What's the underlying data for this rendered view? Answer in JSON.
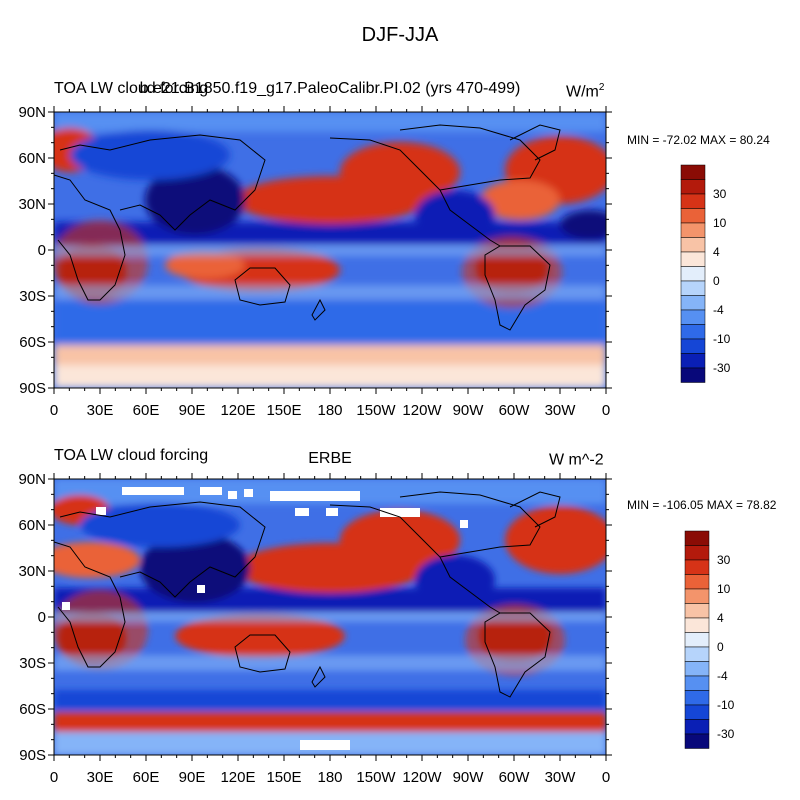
{
  "figure_title": "DJF-JJA",
  "panels": [
    {
      "left_title": "TOA LW cloud forcing",
      "center_title": "b.e21.B1850.f19_g17.PaleoCalibr.PI.02 (yrs 470-499)",
      "units": "W/m",
      "units_sup": "2",
      "min_max": "MIN = -72.02 MAX =  80.24"
    },
    {
      "left_title": "TOA LW cloud forcing",
      "center_title": "ERBE",
      "units": "W m^-2",
      "units_sup": "",
      "min_max": "MIN = -106.05 MAX =  78.82"
    }
  ],
  "lat_labels": [
    "90N",
    "60N",
    "30N",
    "0",
    "30S",
    "60S",
    "90S"
  ],
  "lon_labels": [
    "0",
    "30E",
    "60E",
    "90E",
    "120E",
    "150E",
    "180",
    "150W",
    "120W",
    "90W",
    "60W",
    "30W",
    "0"
  ],
  "colorbar": {
    "colors": [
      "#08087a",
      "#0a1fb5",
      "#1546d6",
      "#2f6ae8",
      "#5690f2",
      "#85b4f8",
      "#b6d4fb",
      "#e3eefb",
      "#fbe6d9",
      "#f8c3a6",
      "#f3946b",
      "#ea6238",
      "#d63317",
      "#b31a0c",
      "#8a0c05"
    ],
    "labels": [
      "30",
      "10",
      "4",
      "0",
      "-4",
      "-10",
      "-30"
    ]
  },
  "chart_data": {
    "type": "heatmap",
    "title": "DJF-JJA",
    "maps": [
      {
        "subtitle": "b.e21.B1850.f19_g17.PaleoCalibr.PI.02 (yrs 470-499)",
        "variable": "TOA LW cloud forcing",
        "units": "W/m2",
        "min": -72.02,
        "max": 80.24
      },
      {
        "subtitle": "ERBE",
        "variable": "TOA LW cloud forcing",
        "units": "W m^-2",
        "min": -106.05,
        "max": 78.82
      }
    ],
    "xlim": [
      0,
      360
    ],
    "ylim": [
      -90,
      90
    ],
    "color_levels": [
      -30,
      -10,
      -4,
      0,
      4,
      10,
      30
    ]
  }
}
